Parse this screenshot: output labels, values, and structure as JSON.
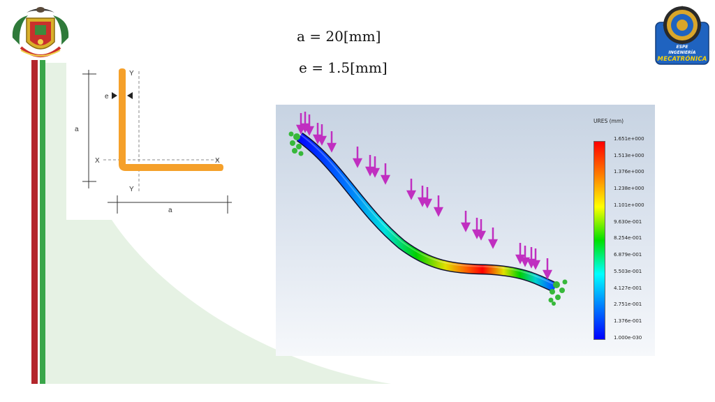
{
  "equations": {
    "a": "a = 20[mm]",
    "e": "e = 1.5[mm]"
  },
  "section_labels": {
    "a_vertical": "a",
    "a_horizontal": "a",
    "e": "e",
    "y_top": "Y",
    "y_bottom": "Y",
    "x_left": "X",
    "x_right": "X"
  },
  "logo_right": {
    "line1": "ESPE",
    "line2": "INGENIERÍA",
    "line3": "MECATRÓNICA"
  },
  "legend": {
    "title": "URES (mm)",
    "ticks": [
      "1.651e+000",
      "1.513e+000",
      "1.376e+000",
      "1.238e+000",
      "1.101e+000",
      "9.630e-001",
      "8.254e-001",
      "6.879e-001",
      "5.503e-001",
      "4.127e-001",
      "2.751e-001",
      "1.376e-001",
      "1.000e-030"
    ]
  },
  "colors": {
    "flag_red": "#b3262c",
    "flag_green": "#3aa64a",
    "section_orange": "#f5a02a",
    "load_arrows": "#c02fc0",
    "fixture": "#37b83a"
  }
}
